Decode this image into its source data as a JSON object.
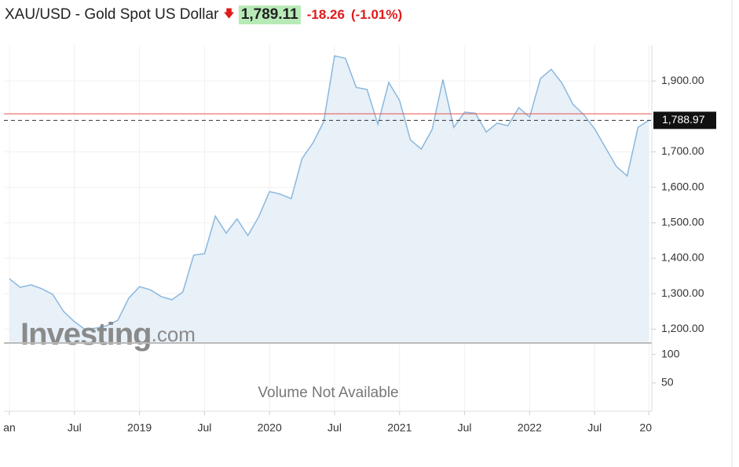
{
  "header": {
    "title": "XAU/USD - Gold Spot US Dollar",
    "price": "1,789.11",
    "change": "-18.26",
    "change_pct": "(-1.01%)"
  },
  "chart_data": {
    "type": "area",
    "categories": [
      "an",
      null,
      null,
      null,
      null,
      null,
      "Jul",
      null,
      null,
      null,
      null,
      null,
      "2019",
      null,
      null,
      null,
      null,
      null,
      "Jul",
      null,
      null,
      null,
      null,
      null,
      "2020",
      null,
      null,
      null,
      null,
      null,
      "Jul",
      null,
      null,
      null,
      null,
      null,
      "2021",
      null,
      null,
      null,
      null,
      null,
      "Jul",
      null,
      null,
      null,
      null,
      null,
      "2022",
      null,
      null,
      null,
      null,
      null,
      "Jul",
      null,
      null,
      null,
      null,
      "20"
    ],
    "series": [
      {
        "color": "#8ab8de",
        "fill": "#e6eef7",
        "values": [
          1342,
          1318,
          1325,
          1314,
          1298,
          1250,
          1221,
          1199,
          1203,
          1210,
          1225,
          1287,
          1320,
          1311,
          1292,
          1283,
          1305,
          1409,
          1413,
          1519,
          1471,
          1511,
          1464,
          1517,
          1588,
          1581,
          1568,
          1681,
          1725,
          1785,
          1971,
          1964,
          1882,
          1876,
          1778,
          1896,
          1845,
          1734,
          1708,
          1763,
          1904,
          1769,
          1812,
          1809,
          1756,
          1781,
          1774,
          1825,
          1798,
          1907,
          1933,
          1893,
          1834,
          1805,
          1765,
          1712,
          1659,
          1632,
          1769,
          1788.97
        ]
      }
    ],
    "ylim": [
      1161,
      2000
    ],
    "yticks": [
      {
        "value": 1200,
        "label": "1,200.00"
      },
      {
        "value": 1300,
        "label": "1,300.00"
      },
      {
        "value": 1400,
        "label": "1,400.00"
      },
      {
        "value": 1500,
        "label": "1,500.00"
      },
      {
        "value": 1600,
        "label": "1,600.00"
      },
      {
        "value": 1700,
        "label": "1,700.00"
      },
      {
        "value": 1900,
        "label": "1,900.00"
      }
    ],
    "grid": true,
    "last_price": {
      "value": 1788.97,
      "label": "1,788.97"
    },
    "reference_line": {
      "value": 1807.37,
      "color": "#e8534f"
    },
    "watermark": "Investing",
    "watermark_suffix": ".com",
    "volume": {
      "ylim": [
        0,
        119
      ],
      "yticks": [
        100,
        50
      ],
      "note": "Volume Not Available"
    }
  }
}
